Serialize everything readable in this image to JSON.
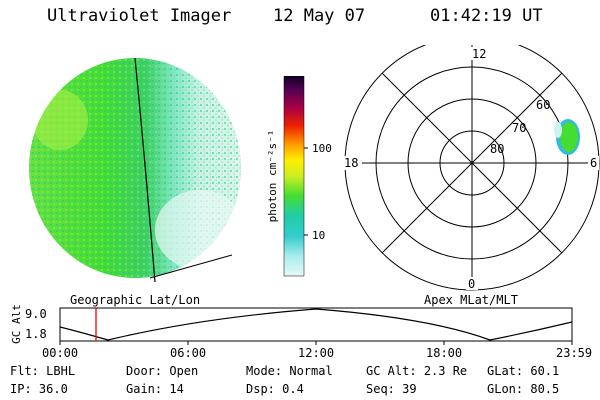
{
  "header": {
    "instrument": "Ultraviolet Imager",
    "date": "12 May 07",
    "time": "01:42:19 UT"
  },
  "colorbar": {
    "label": "photon cm⁻²s⁻¹",
    "ticks": [
      "100",
      "10"
    ]
  },
  "polar": {
    "mlt_labels": {
      "top": "12",
      "left": "18",
      "right": "6",
      "bottom": "0"
    },
    "lat_labels": [
      "60",
      "70",
      "80"
    ]
  },
  "panels": {
    "left_label": "Geographic Lat/Lon",
    "right_label": "Apex MLat/MLT"
  },
  "altitude_plot": {
    "ylabel": "GC Alt",
    "y_ticks": [
      "9.0",
      "1.8"
    ],
    "x_ticks": [
      "00:00",
      "06:00",
      "12:00",
      "18:00",
      "23:59"
    ]
  },
  "info_rows": [
    [
      {
        "label": "Flt:",
        "value": "LBHL"
      },
      {
        "label": "Door:",
        "value": "Open"
      },
      {
        "label": "Mode:",
        "value": "Normal"
      },
      {
        "label": "GC Alt:",
        "value": "2.3 Re"
      },
      {
        "label": "GLat:",
        "value": "60.1"
      }
    ],
    [
      {
        "label": "IP:",
        "value": "36.0"
      },
      {
        "label": "Gain:",
        "value": "14"
      },
      {
        "label": "Dsp:",
        "value": "0.4"
      },
      {
        "label": "Seq:",
        "value": "39"
      },
      {
        "label": "GLon:",
        "value": "80.5"
      }
    ]
  ],
  "colors": {
    "disk_green": "#44dd33",
    "disk_pale": "#ccf4ee",
    "marker": "#ff0000"
  }
}
